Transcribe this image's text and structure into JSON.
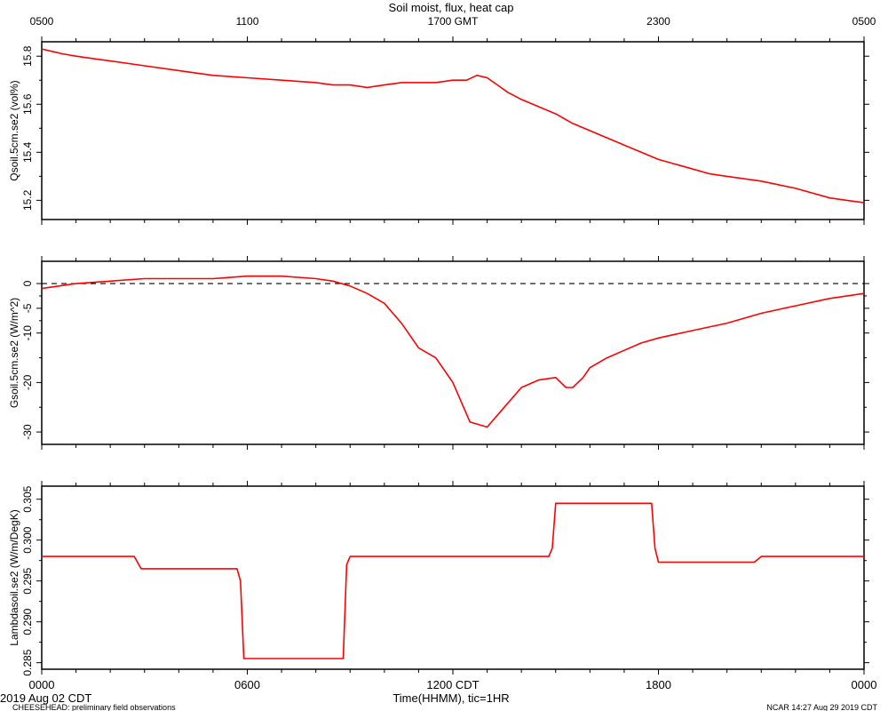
{
  "title": "Soil moist, flux, heat cap",
  "top_axis_ticks": [
    "0500",
    "1100",
    "1700 GMT",
    "2300",
    "0500"
  ],
  "bottom_axis_ticks": [
    "0000",
    "0600",
    "1200 CDT",
    "1800",
    "0000"
  ],
  "x_label": "Time(HHMM), tic=1HR",
  "date_label": "2019 Aug 02 CDT",
  "footer_left": "CHEESEHEAD: preliminary field observations",
  "footer_right": "NCAR 14:27 Aug 29 2019 CDT",
  "colors": {
    "series": "#ff0000",
    "axis": "#000000",
    "zero_line": "#000000"
  },
  "chart_data": [
    {
      "type": "line",
      "ylabel": "Qsoil.5cm.se2 (vol%)",
      "ylim": [
        15.12,
        15.86
      ],
      "yticks": [
        15.2,
        15.4,
        15.6,
        15.8
      ],
      "xlim": [
        0,
        24
      ],
      "grid": false,
      "series": [
        {
          "x": [
            0,
            0.3,
            0.6,
            1,
            1.5,
            2,
            3,
            4,
            5,
            6,
            7,
            8,
            8.5,
            9,
            9.5,
            10,
            10.5,
            11,
            11.5,
            12,
            12.4,
            12.7,
            13,
            13.3,
            13.6,
            14,
            14.5,
            15,
            15.5,
            16,
            17,
            18,
            19,
            19.5,
            20,
            21,
            22,
            23,
            23.5,
            24
          ],
          "y": [
            15.83,
            15.82,
            15.81,
            15.8,
            15.79,
            15.78,
            15.76,
            15.74,
            15.72,
            15.71,
            15.7,
            15.69,
            15.68,
            15.68,
            15.67,
            15.68,
            15.69,
            15.69,
            15.69,
            15.7,
            15.7,
            15.72,
            15.71,
            15.68,
            15.65,
            15.62,
            15.59,
            15.56,
            15.52,
            15.49,
            15.43,
            15.37,
            15.33,
            15.31,
            15.3,
            15.28,
            15.25,
            15.21,
            15.2,
            15.19
          ]
        }
      ]
    },
    {
      "type": "line",
      "ylabel": "Gsoil.5cm.se2 (W/m^2)",
      "ylim": [
        -32.5,
        4.5
      ],
      "yticks": [
        0,
        -5,
        -10,
        -20,
        -30
      ],
      "xlim": [
        0,
        24
      ],
      "grid": false,
      "zero_line": true,
      "series": [
        {
          "x": [
            0,
            1,
            2,
            3,
            4,
            5,
            6,
            7,
            8,
            8.5,
            9,
            9.5,
            10,
            10.5,
            11,
            11.5,
            12,
            12.5,
            13,
            13.5,
            14,
            14.5,
            15,
            15.3,
            15.5,
            15.8,
            16,
            16.5,
            17,
            17.5,
            18,
            19,
            20,
            21,
            22,
            23,
            24
          ],
          "y": [
            -1,
            0,
            0.5,
            1,
            1,
            1,
            1.5,
            1.5,
            1,
            0.5,
            -0.5,
            -2,
            -4,
            -8,
            -13,
            -15,
            -20,
            -28,
            -29,
            -25,
            -21,
            -19.5,
            -19,
            -21,
            -21,
            -19,
            -17,
            -15,
            -13.5,
            -12,
            -11,
            -9.5,
            -8,
            -6,
            -4.5,
            -3,
            -2
          ]
        }
      ]
    },
    {
      "type": "line",
      "ylabel": "Lambdasoil.se2 (W/m/DegK)",
      "ylim": [
        0.2842,
        0.3066
      ],
      "yticks": [
        0.285,
        0.29,
        0.295,
        0.3,
        0.305
      ],
      "xlim": [
        0,
        24
      ],
      "grid": false,
      "series": [
        {
          "x": [
            0,
            2.7,
            2.9,
            5.7,
            5.8,
            5.9,
            8.8,
            8.9,
            9.0,
            14.8,
            14.9,
            15.0,
            17.8,
            17.9,
            18.0,
            20.8,
            21.0,
            24
          ],
          "y": [
            0.298,
            0.298,
            0.2965,
            0.2965,
            0.295,
            0.2855,
            0.2855,
            0.297,
            0.298,
            0.298,
            0.299,
            0.3045,
            0.3045,
            0.299,
            0.2973,
            0.2973,
            0.298,
            0.298
          ]
        }
      ]
    }
  ]
}
